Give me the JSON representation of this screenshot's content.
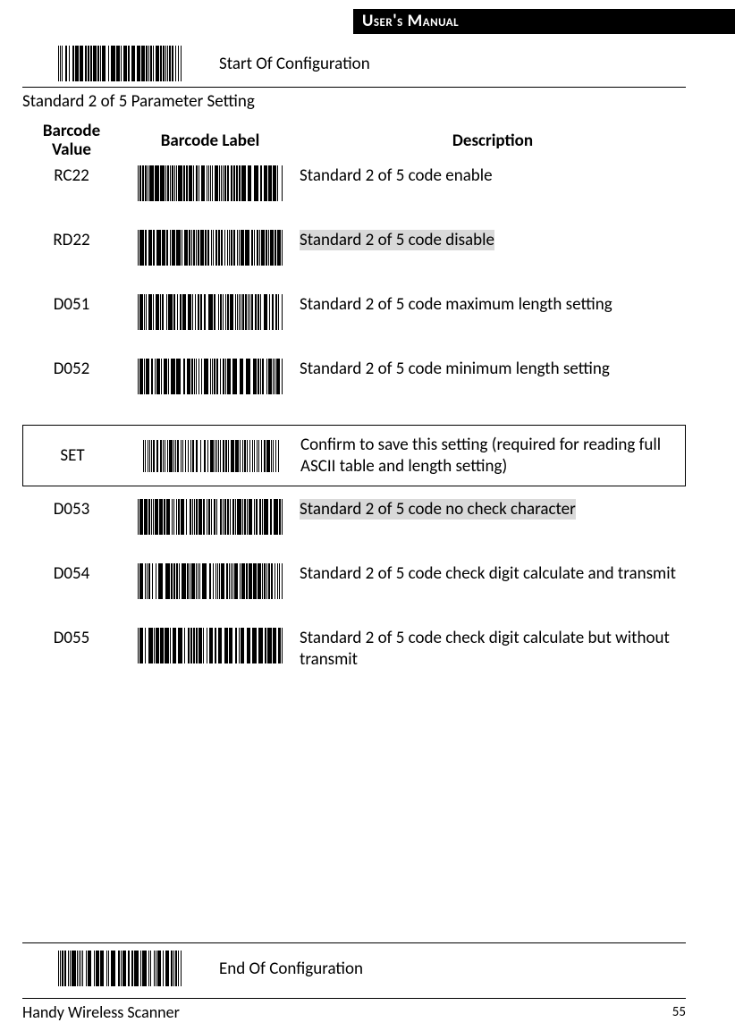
{
  "header": {
    "title": "User's Manual"
  },
  "config": {
    "start_label": "Start Of Configuration",
    "end_label": "End Of Configuration"
  },
  "section_title": "Standard 2 of 5 Parameter Setting",
  "table": {
    "headers": {
      "col1_line1": "Barcode",
      "col1_line2": "Value",
      "col2": "Barcode Label",
      "col3": "Description"
    },
    "rows": [
      {
        "value": "RC22",
        "desc": "Standard 2 of 5 code enable",
        "highlighted": false
      },
      {
        "value": "RD22",
        "desc": "Standard 2 of 5 code disable",
        "highlighted": true
      },
      {
        "value": "D051",
        "desc": "Standard 2 of 5 code maximum length setting",
        "highlighted": false
      },
      {
        "value": "D052",
        "desc": "Standard 2 of 5 code minimum length setting",
        "highlighted": false
      }
    ],
    "boxed": {
      "value": "SET",
      "desc": "Confirm to save this setting (required for reading full ASCII table and length setting)"
    },
    "rows2": [
      {
        "value": "D053",
        "desc": "Standard 2 of 5 code no check character",
        "highlighted": true
      },
      {
        "value": "D054",
        "desc": "Standard 2 of 5 code check digit calculate and transmit",
        "highlighted": false
      },
      {
        "value": "D055",
        "desc": "Standard 2 of 5 code check digit calculate but without transmit",
        "highlighted": false
      }
    ]
  },
  "barcode_style": {
    "config_width": 138,
    "config_height": 40,
    "label_width": 162,
    "label_height": 40,
    "set_width": 152,
    "set_height": 36,
    "color": "#000000"
  },
  "footer": {
    "product": "Handy Wireless Scanner",
    "page": "55"
  }
}
